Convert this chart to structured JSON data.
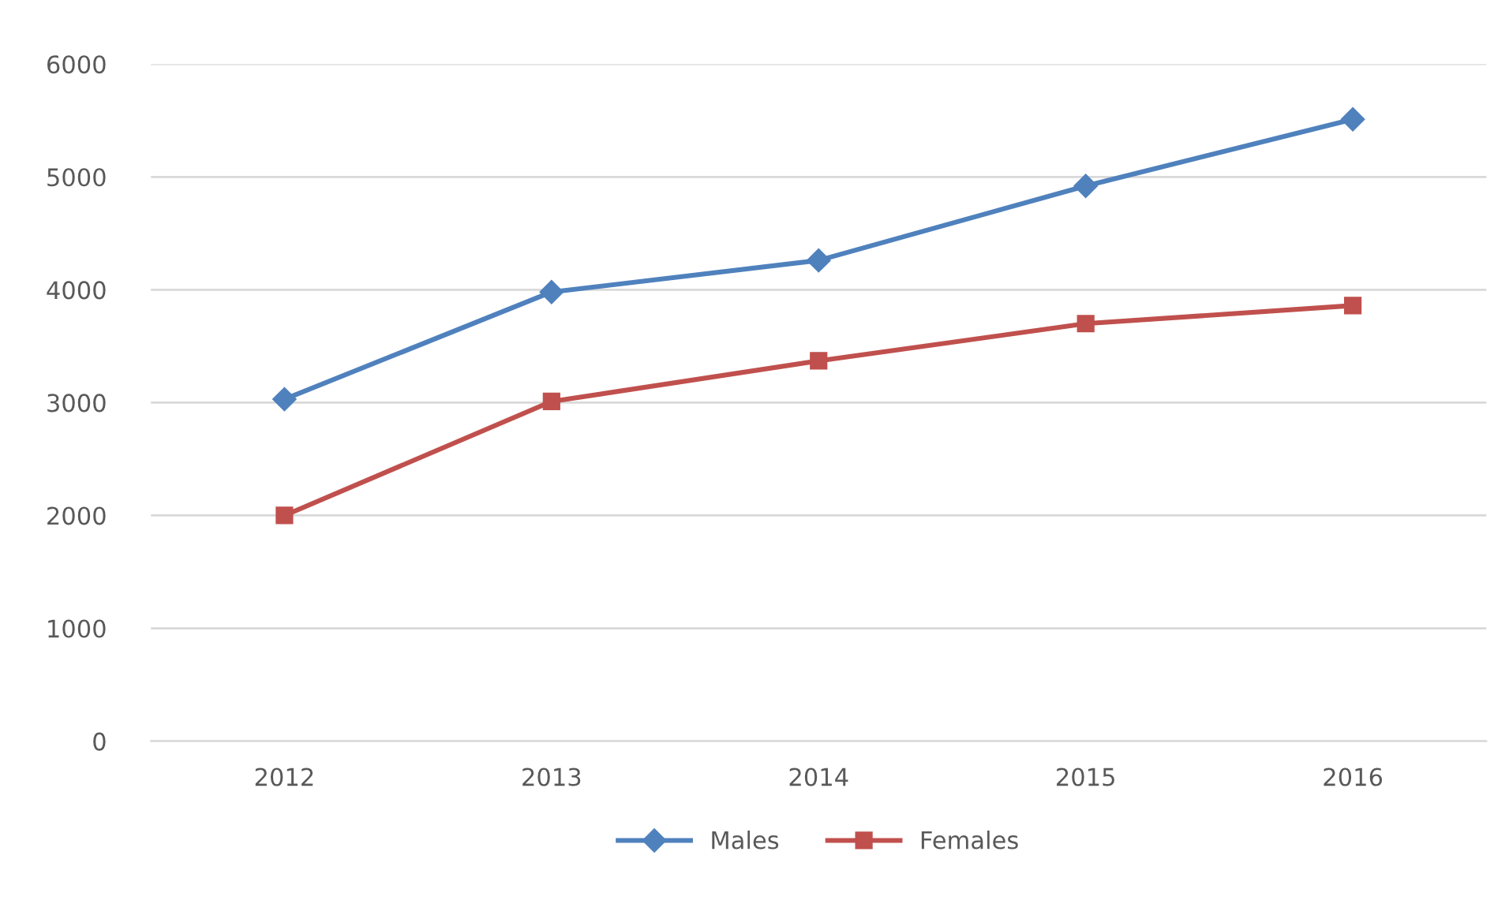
{
  "chart_data": {
    "type": "line",
    "categories": [
      "2012",
      "2013",
      "2014",
      "2015",
      "2016"
    ],
    "series": [
      {
        "name": "Males",
        "color": "#4f81bd",
        "marker": "diamond",
        "values": [
          3030,
          3980,
          4260,
          4920,
          5510
        ]
      },
      {
        "name": "Females",
        "color": "#c0504d",
        "marker": "square",
        "values": [
          2000,
          3010,
          3370,
          3700,
          3860
        ]
      }
    ],
    "ylim": [
      0,
      6000
    ],
    "yticks": [
      0,
      1000,
      2000,
      3000,
      4000,
      5000,
      6000
    ],
    "grid": "y",
    "legend": "bottom",
    "line_style": "solid"
  }
}
